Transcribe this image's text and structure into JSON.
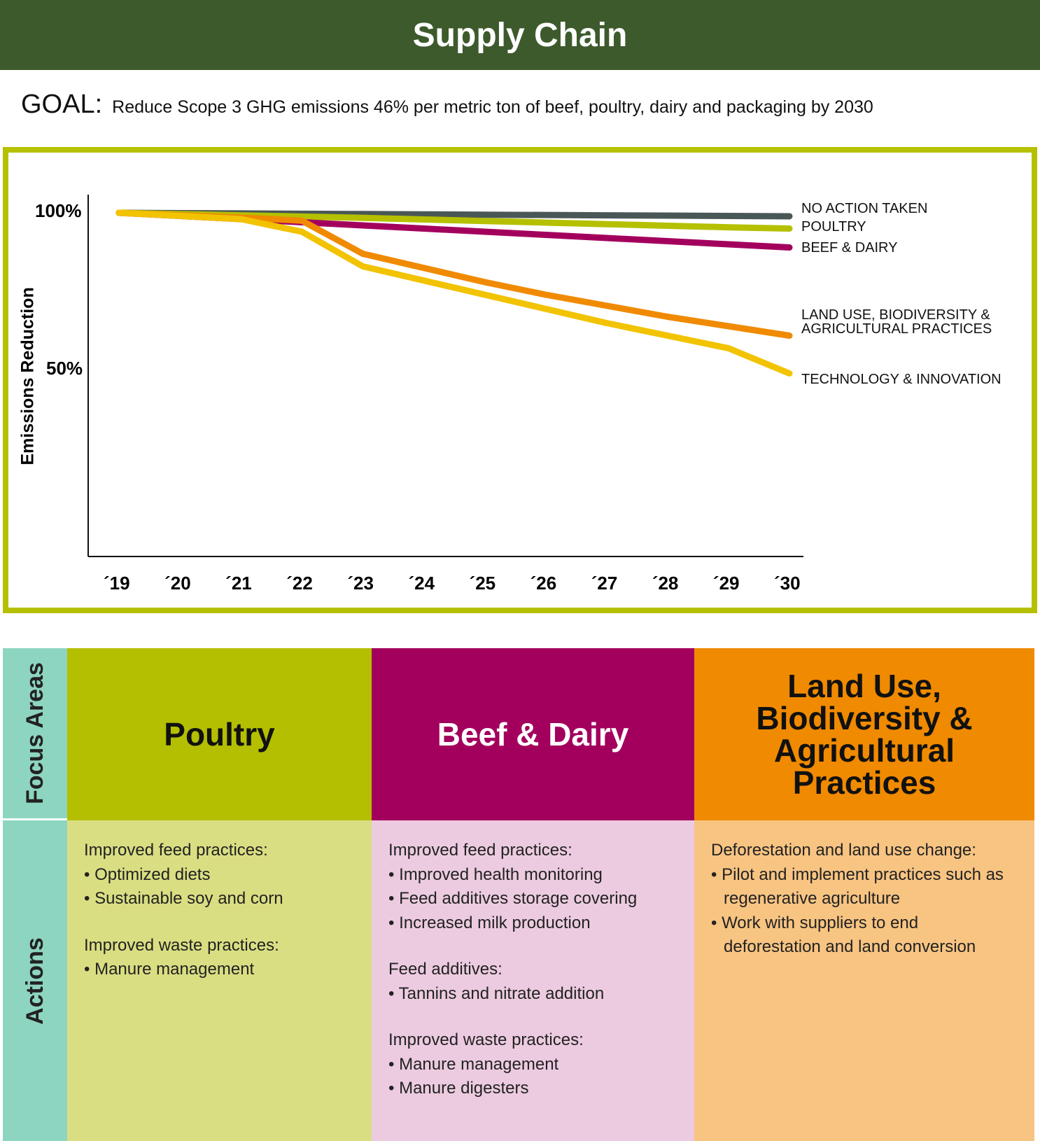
{
  "header": {
    "title": "Supply Chain"
  },
  "goal": {
    "label": "GOAL:",
    "text": "Reduce Scope 3 GHG emissions 46% per metric ton of beef, poultry, dairy and packaging by 2030"
  },
  "chart_data": {
    "type": "line",
    "ylabel": "Emissions Reduction",
    "xlabel": "",
    "x": [
      "´19",
      "´20",
      "´21",
      "´22",
      "´23",
      "´24",
      "´25",
      "´26",
      "´27",
      "´28",
      "´29",
      "´30"
    ],
    "yticks": [
      "100%",
      "50%"
    ],
    "ylim": [
      0,
      100
    ],
    "grid": false,
    "legend_placement": "right (labels at line ends)",
    "series": [
      {
        "name": "NO ACTION TAKEN",
        "color": "#4a5757",
        "values": [
          100,
          99.9,
          99.8,
          99.7,
          99.6,
          99.5,
          99.4,
          99.3,
          99.2,
          99.1,
          99,
          98.9
        ]
      },
      {
        "name": "POULTRY",
        "color": "#b5c000",
        "values": [
          100,
          99.6,
          99.2,
          98.8,
          98.4,
          97.9,
          97.4,
          96.9,
          96.4,
          95.9,
          95.4,
          95
        ]
      },
      {
        "name": "BEEF & DAIRY",
        "color": "#a3005e",
        "values": [
          100,
          99,
          98,
          97,
          96,
          95,
          94,
          93,
          92,
          91,
          90,
          89
        ]
      },
      {
        "name": "LAND USE, BIODIVERSITY & AGRICULTURAL PRACTICES",
        "color": "#f08a00",
        "values": [
          100,
          99.2,
          98.5,
          97.5,
          87,
          82.5,
          78,
          74,
          70.5,
          67,
          64,
          61
        ]
      },
      {
        "name": "TECHNOLOGY & INNOVATION",
        "color": "#f2c300",
        "values": [
          100,
          99,
          98,
          94,
          83,
          78.5,
          74,
          69.5,
          65,
          61,
          57,
          49
        ]
      }
    ]
  },
  "table": {
    "row_labels": {
      "focus": "Focus Areas",
      "actions": "Actions"
    },
    "columns": [
      {
        "title": "Poultry",
        "color": "#b3bf00",
        "light": "#dade82",
        "text_color": "#111",
        "groups": [
          {
            "heading": "Improved feed practices:",
            "items": [
              "Optimized diets",
              "Sustainable soy and corn"
            ]
          },
          {
            "heading": "Improved waste practices:",
            "items": [
              "Manure management"
            ]
          }
        ]
      },
      {
        "title": "Beef & Dairy",
        "color": "#a3005e",
        "light": "#eccbe0",
        "text_color": "#fff",
        "groups": [
          {
            "heading": "Improved feed practices:",
            "items": [
              "Improved health monitoring",
              "Feed additives storage covering",
              "Increased milk production"
            ]
          },
          {
            "heading": "Feed additives:",
            "items": [
              "Tannins and nitrate addition"
            ]
          },
          {
            "heading": "Improved waste practices:",
            "items": [
              "Manure management",
              "Manure digesters"
            ]
          }
        ]
      },
      {
        "title": "Land Use, Biodiversity & Agricultural Practices",
        "color": "#f08a00",
        "light": "#f8c482",
        "text_color": "#111",
        "groups": [
          {
            "heading": "Deforestation and land use change:",
            "items": [
              "Pilot and implement practices such as regenerative agriculture",
              "Work with suppliers to end deforestation and land conversion"
            ]
          }
        ]
      }
    ]
  }
}
